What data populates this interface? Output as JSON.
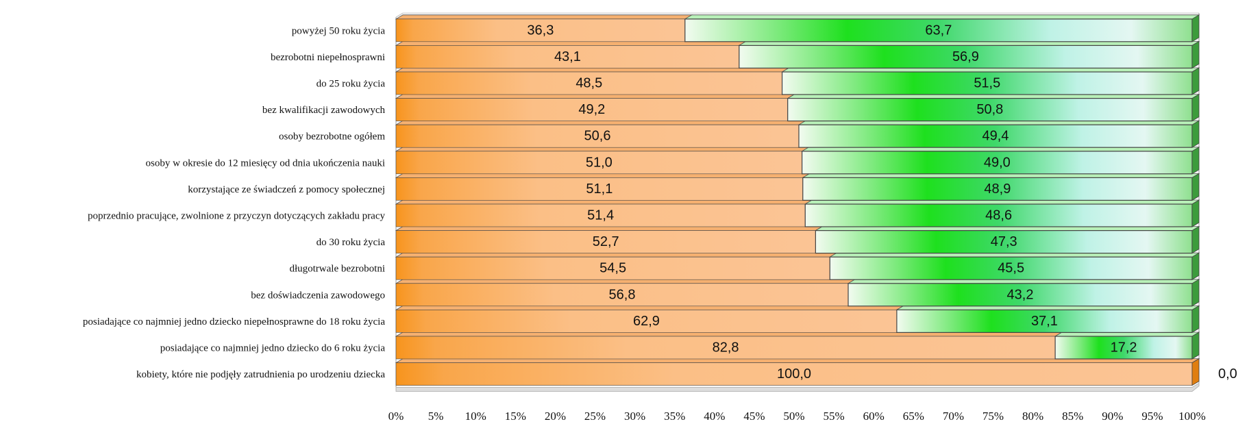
{
  "chart_data": {
    "type": "bar",
    "orientation": "horizontal",
    "stacked": "percent",
    "categories": [
      "powyżej 50 roku życia",
      "bezrobotni niepełnosprawni",
      "do 25 roku  życia",
      "bez kwalifikacji zawodowych",
      "osoby bezrobotne ogółem",
      "osoby w okresie do 12 miesięcy od dnia ukończenia nauki",
      "korzystające ze świadczeń z pomocy społecznej",
      "poprzednio pracujące, zwolnione z przyczyn dotyczących zakładu pracy",
      "do 30 roku życia",
      "długotrwale bezrobotni",
      "bez doświadczenia zawodowego",
      "posiadające co najmniej jedno dziecko niepełnosprawne do 18 roku życia",
      "posiadające co najmniej jedno dziecko do 6 roku życia",
      "kobiety, które nie podjęły zatrudnienia po urodzeniu dziecka"
    ],
    "series": [
      {
        "color": "#f7941d",
        "values": [
          36.3,
          43.1,
          48.5,
          49.2,
          50.6,
          51.0,
          51.1,
          51.4,
          52.7,
          54.5,
          56.8,
          62.9,
          82.8,
          100.0
        ],
        "labels": [
          "36,3",
          "43,1",
          "48,5",
          "49,2",
          "50,6",
          "51,0",
          "51,1",
          "51,4",
          "52,7",
          "54,5",
          "56,8",
          "62,9",
          "82,8",
          "100,0"
        ]
      },
      {
        "color": "#22dd22",
        "values": [
          63.7,
          56.9,
          51.5,
          50.8,
          49.4,
          49.0,
          48.9,
          48.6,
          47.3,
          45.5,
          43.2,
          37.1,
          17.2,
          0.0
        ],
        "labels": [
          "63,7",
          "56,9",
          "51,5",
          "50,8",
          "49,4",
          "49,0",
          "48,9",
          "48,6",
          "47,3",
          "45,5",
          "43,2",
          "37,1",
          "17,2",
          "0,0"
        ]
      }
    ],
    "xlim": [
      0,
      100
    ],
    "xticks": [
      "0%",
      "5%",
      "10%",
      "15%",
      "20%",
      "25%",
      "30%",
      "35%",
      "40%",
      "45%",
      "50%",
      "55%",
      "60%",
      "65%",
      "70%",
      "75%",
      "80%",
      "85%",
      "90%",
      "95%",
      "100%"
    ],
    "grid": false,
    "legend": "none",
    "style": "3d"
  }
}
